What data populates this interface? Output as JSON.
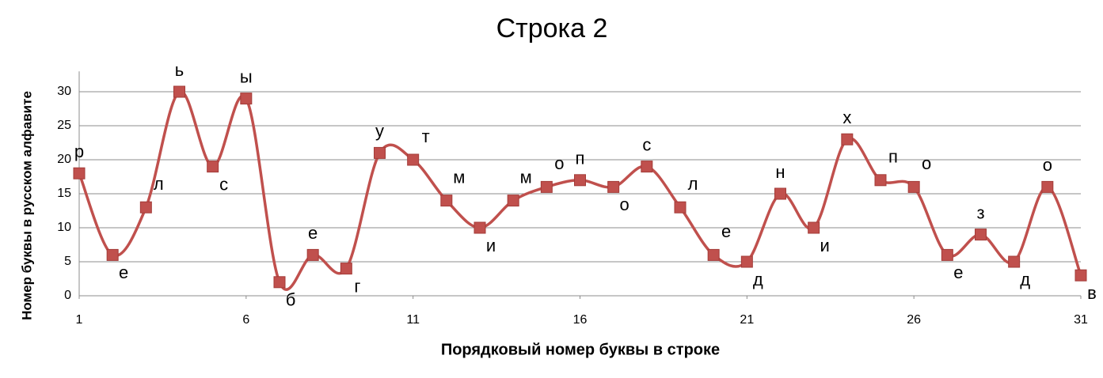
{
  "chart_data": {
    "type": "line",
    "title": "Строка 2",
    "x_label": "Порядковый номер буквы в строке",
    "y_label": "Номер буквы в русском алфавите",
    "x": [
      1,
      2,
      3,
      4,
      5,
      6,
      7,
      8,
      9,
      10,
      11,
      12,
      13,
      14,
      15,
      16,
      17,
      18,
      19,
      20,
      21,
      22,
      23,
      24,
      25,
      26,
      27,
      28,
      29,
      30,
      31
    ],
    "values": [
      18,
      6,
      13,
      30,
      19,
      29,
      2,
      6,
      4,
      21,
      20,
      14,
      10,
      14,
      16,
      17,
      16,
      19,
      13,
      6,
      5,
      15,
      10,
      23,
      17,
      16,
      6,
      9,
      5,
      16,
      3
    ],
    "point_labels": [
      "р",
      "е",
      "л",
      "ь",
      "с",
      "ы",
      "б",
      "е",
      "г",
      "у",
      "т",
      "м",
      "и",
      "м",
      "о",
      "п",
      "о",
      "с",
      "л",
      "е",
      "д",
      "н",
      "и",
      "х",
      "п",
      "о",
      "е",
      "з",
      "д",
      "о",
      "в"
    ],
    "color": "#c0504d",
    "xlim": [
      1,
      31
    ],
    "xticks": [
      1,
      6,
      11,
      16,
      21,
      26,
      31
    ],
    "ylim": [
      0,
      33
    ],
    "yticks": [
      0,
      5,
      10,
      15,
      20,
      25,
      30
    ],
    "grid": true,
    "smooth": true
  }
}
